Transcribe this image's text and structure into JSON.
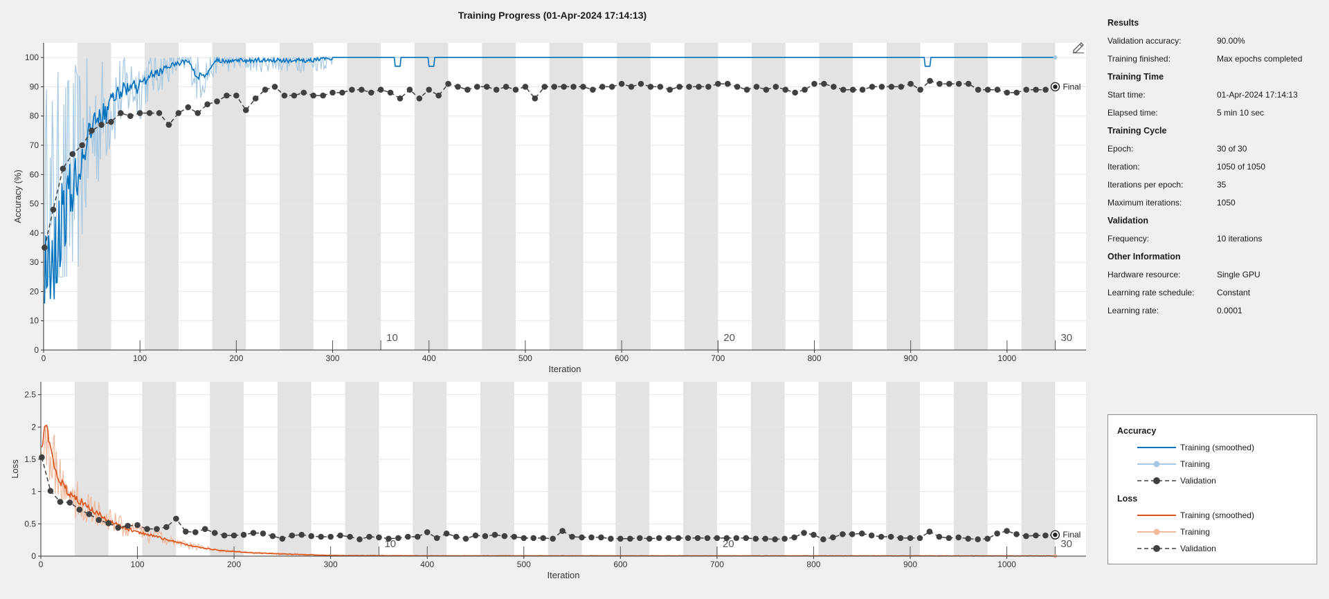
{
  "title": "Training Progress (01-Apr-2024 17:14:13)",
  "info_panel": {
    "sections": [
      {
        "heading": "Results",
        "rows": [
          {
            "key": "Validation accuracy:",
            "value": "90.00%"
          },
          {
            "key": "Training finished:",
            "value": "Max epochs completed"
          }
        ]
      },
      {
        "heading": "Training Time",
        "rows": [
          {
            "key": "Start time:",
            "value": "01-Apr-2024 17:14:13"
          },
          {
            "key": "Elapsed time:",
            "value": "5 min 10 sec"
          }
        ]
      },
      {
        "heading": "Training Cycle",
        "rows": [
          {
            "key": "Epoch:",
            "value": "30 of 30"
          },
          {
            "key": "Iteration:",
            "value": "1050 of 1050"
          },
          {
            "key": "Iterations per epoch:",
            "value": "35"
          },
          {
            "key": "Maximum iterations:",
            "value": "1050"
          }
        ]
      },
      {
        "heading": "Validation",
        "rows": [
          {
            "key": "Frequency:",
            "value": "10 iterations"
          }
        ]
      },
      {
        "heading": "Other Information",
        "rows": [
          {
            "key": "Hardware resource:",
            "value": "Single GPU"
          },
          {
            "key": "Learning rate schedule:",
            "value": "Constant"
          },
          {
            "key": "Learning rate:",
            "value": "0.0001"
          }
        ]
      }
    ]
  },
  "legend": {
    "accuracy_heading": "Accuracy",
    "loss_heading": "Loss",
    "smoothed_label": "Training (smoothed)",
    "training_label": "Training",
    "validation_label": "Validation"
  },
  "chart_data": [
    {
      "type": "line",
      "ylabel": "Accuracy (%)",
      "xlabel": "Iteration",
      "xlim": [
        0,
        1082
      ],
      "ylim": [
        0,
        105
      ],
      "xticks": [
        0,
        100,
        200,
        300,
        400,
        500,
        600,
        700,
        800,
        900,
        1000
      ],
      "yticks": [
        0,
        10,
        20,
        30,
        40,
        50,
        60,
        70,
        80,
        90,
        100
      ],
      "epochs": 30,
      "iterations_per_epoch": 35,
      "epoch_labels": [
        10,
        20,
        30
      ],
      "final_label": "Final",
      "colors": {
        "smoothed": "#0072bd",
        "training": "#a6c8e2",
        "validation": "#404040",
        "band": "#e3e3e3"
      },
      "smoothed": {
        "x": [
          1,
          10,
          20,
          30,
          40,
          50,
          60,
          70,
          80,
          90,
          100,
          110,
          120,
          130,
          140,
          150,
          160,
          170,
          180,
          190,
          200,
          220,
          240,
          260,
          280,
          300,
          1050
        ],
        "y": [
          30,
          32,
          46,
          56,
          66,
          73,
          80,
          84,
          88,
          90,
          90,
          94,
          95,
          97,
          98,
          99,
          93,
          95,
          99,
          99,
          99,
          99,
          99,
          99,
          99,
          100,
          100
        ]
      },
      "validation": {
        "x": [
          1,
          10,
          20,
          30,
          40,
          50,
          60,
          70,
          80,
          90,
          100,
          110,
          120,
          130,
          140,
          150,
          160,
          170,
          180,
          190,
          200,
          210,
          220,
          230,
          240,
          250,
          260,
          270,
          280,
          290,
          300,
          310,
          320,
          330,
          340,
          350,
          360,
          370,
          380,
          390,
          400,
          410,
          420,
          430,
          440,
          450,
          460,
          470,
          480,
          490,
          500,
          510,
          520,
          530,
          540,
          550,
          560,
          570,
          580,
          590,
          600,
          610,
          620,
          630,
          640,
          650,
          660,
          670,
          680,
          690,
          700,
          710,
          720,
          730,
          740,
          750,
          760,
          770,
          780,
          790,
          800,
          810,
          820,
          830,
          840,
          850,
          860,
          870,
          880,
          890,
          900,
          910,
          920,
          930,
          940,
          950,
          960,
          970,
          980,
          990,
          1000,
          1010,
          1020,
          1030,
          1040,
          1050
        ],
        "y": [
          35,
          48,
          62,
          67,
          70,
          75,
          77,
          78,
          81,
          80,
          81,
          81,
          81,
          77,
          81,
          83,
          81,
          84,
          85,
          87,
          87,
          82,
          86,
          89,
          90,
          87,
          87,
          88,
          87,
          87,
          88,
          88,
          89,
          89,
          88,
          89,
          88,
          86,
          89,
          86,
          89,
          87,
          91,
          90,
          89,
          90,
          90,
          89,
          90,
          89,
          90,
          86,
          90,
          90,
          90,
          90,
          90,
          89,
          90,
          90,
          91,
          90,
          91,
          90,
          90,
          89,
          90,
          90,
          90,
          90,
          91,
          91,
          90,
          89,
          90,
          89,
          90,
          89,
          88,
          89,
          91,
          91,
          90,
          89,
          89,
          89,
          90,
          90,
          90,
          90,
          91,
          89,
          92,
          91,
          91,
          91,
          91,
          89,
          89,
          89,
          88,
          88,
          89,
          89,
          89,
          90
        ]
      }
    },
    {
      "type": "line",
      "ylabel": "Loss",
      "xlabel": "Iteration",
      "xlim": [
        0,
        1082
      ],
      "ylim": [
        0,
        2.7
      ],
      "xticks": [
        0,
        100,
        200,
        300,
        400,
        500,
        600,
        700,
        800,
        900,
        1000
      ],
      "yticks": [
        0,
        0.5,
        1,
        1.5,
        2,
        2.5
      ],
      "epochs": 30,
      "iterations_per_epoch": 35,
      "epoch_labels": [
        10,
        20,
        30
      ],
      "final_label": "Final",
      "colors": {
        "smoothed": "#d95319",
        "training": "#f0b89c",
        "validation": "#404040",
        "band": "#e3e3e3"
      },
      "smoothed": {
        "x": [
          1,
          5,
          10,
          15,
          20,
          30,
          40,
          50,
          60,
          70,
          80,
          90,
          100,
          110,
          120,
          130,
          140,
          150,
          160,
          170,
          180,
          190,
          200,
          220,
          240,
          260,
          280,
          300,
          400,
          1050
        ],
        "y": [
          1.7,
          2.1,
          1.6,
          1.35,
          1.15,
          0.95,
          0.85,
          0.75,
          0.65,
          0.55,
          0.48,
          0.42,
          0.38,
          0.33,
          0.3,
          0.26,
          0.22,
          0.18,
          0.15,
          0.12,
          0.1,
          0.08,
          0.07,
          0.05,
          0.04,
          0.03,
          0.02,
          0.01,
          0.005,
          0.003
        ]
      },
      "validation": {
        "x": [
          1,
          10,
          20,
          30,
          40,
          50,
          60,
          70,
          80,
          90,
          100,
          110,
          120,
          130,
          140,
          150,
          160,
          170,
          180,
          190,
          200,
          210,
          220,
          230,
          240,
          250,
          260,
          270,
          280,
          290,
          300,
          310,
          320,
          330,
          340,
          350,
          360,
          370,
          380,
          390,
          400,
          410,
          420,
          430,
          440,
          450,
          460,
          470,
          480,
          490,
          500,
          510,
          520,
          530,
          540,
          550,
          560,
          570,
          580,
          590,
          600,
          610,
          620,
          630,
          640,
          650,
          660,
          670,
          680,
          690,
          700,
          710,
          720,
          730,
          740,
          750,
          760,
          770,
          780,
          790,
          800,
          810,
          820,
          830,
          840,
          850,
          860,
          870,
          880,
          890,
          900,
          910,
          920,
          930,
          940,
          950,
          960,
          970,
          980,
          990,
          1000,
          1010,
          1020,
          1030,
          1040,
          1050
        ],
        "y": [
          1.53,
          1.01,
          0.84,
          0.83,
          0.72,
          0.65,
          0.56,
          0.51,
          0.44,
          0.47,
          0.48,
          0.42,
          0.42,
          0.45,
          0.58,
          0.38,
          0.37,
          0.42,
          0.36,
          0.32,
          0.32,
          0.33,
          0.36,
          0.35,
          0.31,
          0.27,
          0.32,
          0.33,
          0.31,
          0.3,
          0.3,
          0.32,
          0.3,
          0.26,
          0.3,
          0.29,
          0.27,
          0.28,
          0.3,
          0.3,
          0.37,
          0.28,
          0.35,
          0.3,
          0.27,
          0.32,
          0.31,
          0.33,
          0.31,
          0.3,
          0.28,
          0.28,
          0.28,
          0.27,
          0.39,
          0.3,
          0.29,
          0.29,
          0.29,
          0.27,
          0.27,
          0.27,
          0.28,
          0.27,
          0.28,
          0.28,
          0.28,
          0.28,
          0.28,
          0.28,
          0.28,
          0.28,
          0.28,
          0.28,
          0.27,
          0.27,
          0.26,
          0.27,
          0.29,
          0.36,
          0.33,
          0.26,
          0.29,
          0.34,
          0.34,
          0.35,
          0.32,
          0.3,
          0.3,
          0.28,
          0.28,
          0.28,
          0.38,
          0.3,
          0.28,
          0.29,
          0.27,
          0.26,
          0.27,
          0.35,
          0.39,
          0.34,
          0.31,
          0.32,
          0.32,
          0.33
        ]
      }
    }
  ]
}
